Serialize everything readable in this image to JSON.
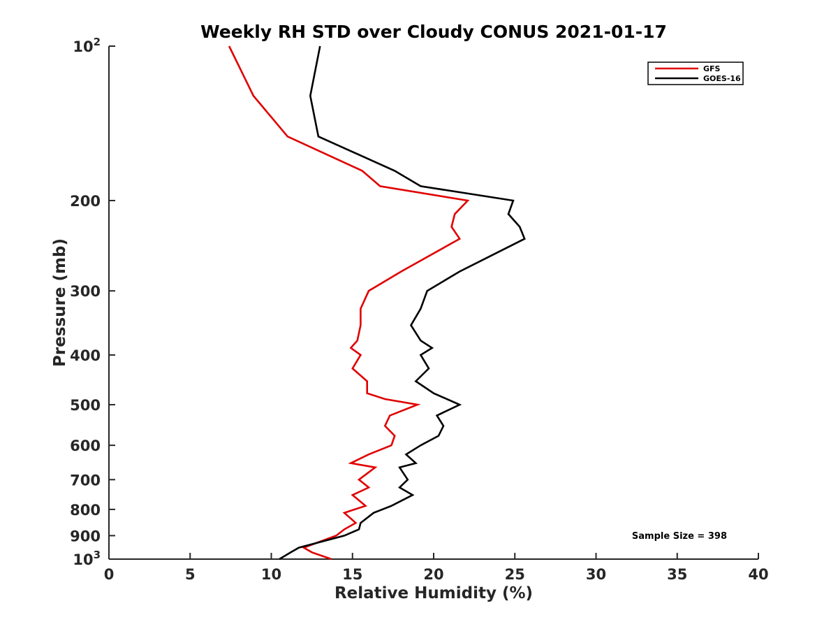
{
  "chart_data": {
    "type": "line",
    "title": "Weekly RH STD over Cloudy CONUS 2021-01-17",
    "xlabel": "Relative Humidity (%)",
    "ylabel": "Pressure (mb)",
    "xlim": [
      0,
      40
    ],
    "ylim": [
      100,
      1000
    ],
    "y_scale": "log",
    "y_reversed": true,
    "xticks": [
      0,
      5,
      10,
      15,
      20,
      25,
      30,
      35,
      40
    ],
    "yticks": [
      {
        "value": 100,
        "label": "10",
        "sup": "2"
      },
      {
        "value": 200,
        "label": "200"
      },
      {
        "value": 300,
        "label": "300"
      },
      {
        "value": 400,
        "label": "400"
      },
      {
        "value": 500,
        "label": "500"
      },
      {
        "value": 600,
        "label": "600"
      },
      {
        "value": 700,
        "label": "700"
      },
      {
        "value": 800,
        "label": "800"
      },
      {
        "value": 900,
        "label": "900"
      },
      {
        "value": 1000,
        "label": "10",
        "sup": "3"
      }
    ],
    "legend_position": "top-right",
    "series": [
      {
        "name": "GFS",
        "color": "#e00000",
        "points": [
          [
            7.4,
            100
          ],
          [
            8.9,
            125
          ],
          [
            11.0,
            150
          ],
          [
            15.6,
            175
          ],
          [
            16.7,
            187.5
          ],
          [
            22.1,
            200
          ],
          [
            21.3,
            212.5
          ],
          [
            21.1,
            225
          ],
          [
            21.6,
            237.5
          ],
          [
            18.0,
            275
          ],
          [
            16.0,
            300
          ],
          [
            15.5,
            325
          ],
          [
            15.5,
            350
          ],
          [
            15.3,
            375
          ],
          [
            14.9,
            387.5
          ],
          [
            15.5,
            400
          ],
          [
            15.0,
            425
          ],
          [
            15.9,
            450
          ],
          [
            15.9,
            475
          ],
          [
            17.0,
            487.5
          ],
          [
            19.0,
            500
          ],
          [
            17.3,
            525
          ],
          [
            17.0,
            550
          ],
          [
            17.6,
            575
          ],
          [
            17.4,
            600
          ],
          [
            16.0,
            625
          ],
          [
            14.9,
            650
          ],
          [
            16.4,
            662.5
          ],
          [
            15.4,
            700
          ],
          [
            16.0,
            725
          ],
          [
            15.0,
            750
          ],
          [
            15.8,
            787.5
          ],
          [
            14.5,
            812.5
          ],
          [
            15.2,
            850
          ],
          [
            14.5,
            875
          ],
          [
            14.0,
            900
          ],
          [
            12.0,
            950
          ],
          [
            12.5,
            970
          ],
          [
            13.7,
            1000
          ]
        ]
      },
      {
        "name": "GOES-16",
        "color": "#000000",
        "points": [
          [
            13.0,
            100
          ],
          [
            12.4,
            125
          ],
          [
            12.9,
            150
          ],
          [
            17.6,
            175
          ],
          [
            19.2,
            187.5
          ],
          [
            24.9,
            200
          ],
          [
            24.6,
            212.5
          ],
          [
            25.3,
            225
          ],
          [
            25.6,
            237.5
          ],
          [
            21.6,
            275
          ],
          [
            19.6,
            300
          ],
          [
            19.2,
            325
          ],
          [
            18.6,
            350
          ],
          [
            19.2,
            375
          ],
          [
            19.9,
            387.5
          ],
          [
            19.2,
            400
          ],
          [
            19.7,
            425
          ],
          [
            18.9,
            450
          ],
          [
            20.0,
            475
          ],
          [
            21.6,
            500
          ],
          [
            20.2,
            525
          ],
          [
            20.6,
            550
          ],
          [
            20.3,
            575
          ],
          [
            19.2,
            600
          ],
          [
            18.3,
            625
          ],
          [
            18.9,
            650
          ],
          [
            17.9,
            662.5
          ],
          [
            18.4,
            700
          ],
          [
            17.9,
            725
          ],
          [
            18.7,
            750
          ],
          [
            17.4,
            787.5
          ],
          [
            16.3,
            812.5
          ],
          [
            15.5,
            850
          ],
          [
            15.4,
            875
          ],
          [
            14.5,
            900
          ],
          [
            11.7,
            950
          ],
          [
            11.2,
            970
          ],
          [
            10.5,
            1000
          ]
        ]
      }
    ],
    "annotation": "Sample Size = 398"
  }
}
